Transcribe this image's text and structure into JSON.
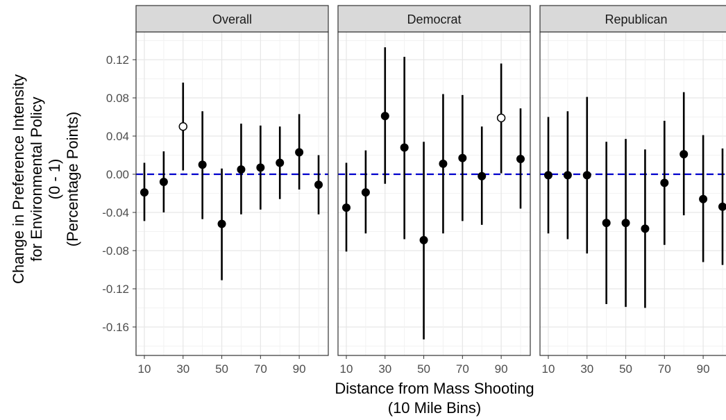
{
  "chart_data": {
    "type": "scatter",
    "subtype": "point-range (coefficient plot) faceted by panel",
    "xlabel": [
      "Distance from Mass Shooting",
      "(10 Mile Bins)"
    ],
    "ylabel": [
      "Change in Preference Intensity",
      "for Environmental Policy",
      "(0 - 1)",
      "(Percentage Points)"
    ],
    "ylim": [
      -0.18,
      0.14
    ],
    "y_ticks": [
      0.12,
      0.08,
      0.04,
      0.0,
      -0.04,
      -0.08,
      -0.12,
      -0.16
    ],
    "y_tick_labels": [
      "0.12",
      "0.08",
      "0.04",
      "0.00",
      "-0.04",
      "-0.08",
      "-0.12",
      "-0.16"
    ],
    "xlim": [
      7,
      103
    ],
    "x_ticks": [
      10,
      30,
      50,
      70,
      90
    ],
    "x_tick_labels": [
      "10",
      "30",
      "50",
      "70",
      "90"
    ],
    "reference_line": {
      "y": 0.0,
      "style": "dashed",
      "color": "#0000cc"
    },
    "grid": true,
    "theme": "bw",
    "marker_fill_legend": "filled = default, open = highlighted estimate",
    "panels": [
      {
        "name": "Overall",
        "points": [
          {
            "x": 10,
            "y": -0.019,
            "lo": -0.049,
            "hi": 0.012,
            "open": false
          },
          {
            "x": 20,
            "y": -0.008,
            "lo": -0.04,
            "hi": 0.024,
            "open": false
          },
          {
            "x": 30,
            "y": 0.05,
            "lo": 0.004,
            "hi": 0.096,
            "open": true
          },
          {
            "x": 40,
            "y": 0.01,
            "lo": -0.047,
            "hi": 0.066,
            "open": false
          },
          {
            "x": 50,
            "y": -0.052,
            "lo": -0.111,
            "hi": 0.006,
            "open": false
          },
          {
            "x": 60,
            "y": 0.005,
            "lo": -0.042,
            "hi": 0.053,
            "open": false
          },
          {
            "x": 70,
            "y": 0.007,
            "lo": -0.037,
            "hi": 0.051,
            "open": false
          },
          {
            "x": 80,
            "y": 0.012,
            "lo": -0.026,
            "hi": 0.05,
            "open": false
          },
          {
            "x": 90,
            "y": 0.023,
            "lo": -0.016,
            "hi": 0.063,
            "open": false
          },
          {
            "x": 100,
            "y": -0.011,
            "lo": -0.042,
            "hi": 0.02,
            "open": false
          }
        ]
      },
      {
        "name": "Democrat",
        "points": [
          {
            "x": 10,
            "y": -0.035,
            "lo": -0.081,
            "hi": 0.012,
            "open": false
          },
          {
            "x": 20,
            "y": -0.019,
            "lo": -0.062,
            "hi": 0.025,
            "open": false
          },
          {
            "x": 30,
            "y": 0.061,
            "lo": -0.01,
            "hi": 0.133,
            "open": false
          },
          {
            "x": 40,
            "y": 0.028,
            "lo": -0.068,
            "hi": 0.123,
            "open": false
          },
          {
            "x": 50,
            "y": -0.069,
            "lo": -0.173,
            "hi": 0.034,
            "open": false
          },
          {
            "x": 60,
            "y": 0.011,
            "lo": -0.062,
            "hi": 0.084,
            "open": false
          },
          {
            "x": 70,
            "y": 0.017,
            "lo": -0.049,
            "hi": 0.083,
            "open": false
          },
          {
            "x": 80,
            "y": -0.002,
            "lo": -0.053,
            "hi": 0.05,
            "open": false
          },
          {
            "x": 90,
            "y": 0.059,
            "lo": 0.001,
            "hi": 0.116,
            "open": true
          },
          {
            "x": 100,
            "y": 0.016,
            "lo": -0.036,
            "hi": 0.069,
            "open": false
          }
        ]
      },
      {
        "name": "Republican",
        "points": [
          {
            "x": 10,
            "y": -0.001,
            "lo": -0.062,
            "hi": 0.06,
            "open": false
          },
          {
            "x": 20,
            "y": -0.001,
            "lo": -0.068,
            "hi": 0.066,
            "open": false
          },
          {
            "x": 30,
            "y": -0.001,
            "lo": -0.083,
            "hi": 0.081,
            "open": false
          },
          {
            "x": 40,
            "y": -0.051,
            "lo": -0.136,
            "hi": 0.034,
            "open": false
          },
          {
            "x": 50,
            "y": -0.051,
            "lo": -0.139,
            "hi": 0.037,
            "open": false
          },
          {
            "x": 60,
            "y": -0.057,
            "lo": -0.14,
            "hi": 0.026,
            "open": false
          },
          {
            "x": 70,
            "y": -0.009,
            "lo": -0.074,
            "hi": 0.056,
            "open": false
          },
          {
            "x": 80,
            "y": 0.021,
            "lo": -0.043,
            "hi": 0.086,
            "open": false
          },
          {
            "x": 90,
            "y": -0.026,
            "lo": -0.092,
            "hi": 0.041,
            "open": false
          },
          {
            "x": 100,
            "y": -0.034,
            "lo": -0.095,
            "hi": 0.027,
            "open": false
          }
        ]
      }
    ]
  },
  "colors": {
    "point": "#000000",
    "errorbar": "#000000",
    "open_point_fill": "#ffffff",
    "zero_line": "#0000cc",
    "grid_major": "#e6e6e6",
    "grid_minor": "#f2f2f2",
    "strip_fill": "#d9d9d9",
    "panel_border": "#333333",
    "tick_label": "#4d4d4d"
  }
}
